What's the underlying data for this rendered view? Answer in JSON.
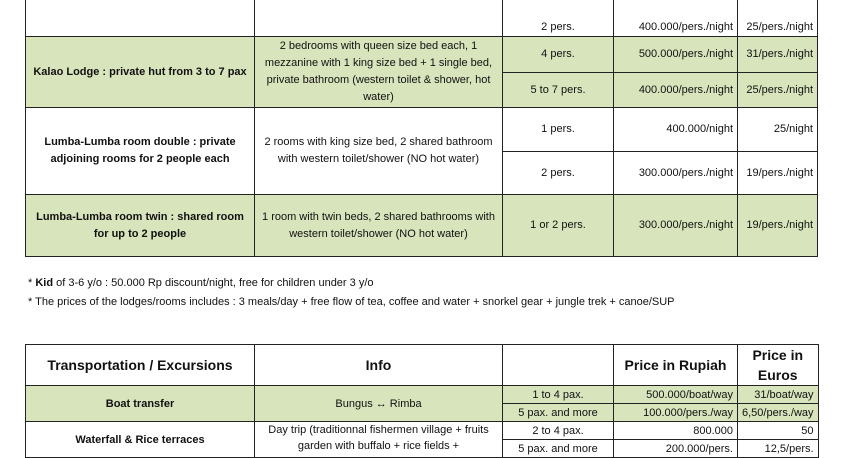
{
  "lodging": {
    "rows": [
      {
        "name": "",
        "info": "",
        "prices": [
          {
            "pax": "2 pers.",
            "rp": "400.000/pers./night",
            "eur": "25/pers./night"
          }
        ]
      },
      {
        "name": "Kalao Lodge : private hut from 3 to 7 pax",
        "info": "2 bedrooms with queen size bed each, 1 mezzanine with 1 king size bed + 1 single bed, private bathroom (western toilet & shower, hot water)",
        "prices": [
          {
            "pax": "4 pers.",
            "rp": "500.000/pers./night",
            "eur": "31/pers./night"
          },
          {
            "pax": "5 to 7 pers.",
            "rp": "400.000/pers./night",
            "eur": "25/pers./night"
          }
        ]
      },
      {
        "name": "Lumba-Lumba room double : private adjoining rooms for 2 people each",
        "info": "2 rooms with king size bed, 2 shared bathroom with western toilet/shower (NO hot water)",
        "prices": [
          {
            "pax": "1 pers.",
            "rp": "400.000/night",
            "eur": "25/night"
          },
          {
            "pax": "2 pers.",
            "rp": "300.000/pers./night",
            "eur": "19/pers./night"
          }
        ]
      },
      {
        "name": "Lumba-Lumba room twin : shared room for up to 2 people",
        "info": "1 room with twin beds, 2 shared bathrooms with western toilet/shower (NO hot water)",
        "prices": [
          {
            "pax": "1 or 2 pers.",
            "rp": "300.000/pers./night",
            "eur": "19/pers./night"
          }
        ]
      }
    ]
  },
  "notes": {
    "kid_bold": "Kid",
    "kid_text": " of 3-6 y/o : 50.000 Rp discount/night, free for children under 3 y/o",
    "kid_prefix": "* ",
    "includes": "* The prices of the lodges/rooms includes : 3 meals/day + free flow of tea, coffee and water + snorkel gear + jungle trek + canoe/SUP"
  },
  "transport": {
    "headers": [
      "Transportation / Excursions",
      "Info",
      "",
      "Price in Rupiah",
      "Price in Euros"
    ],
    "rows": [
      {
        "name": "Boat transfer",
        "info": "Bungus ↔ Rimba",
        "prices": [
          {
            "pax": "1 to 4 pax.",
            "rp": "500.000/boat/way",
            "eur": "31/boat/way"
          },
          {
            "pax": "5 pax. and more",
            "rp": "100.000/pers./way",
            "eur": "6,50/pers./way"
          }
        ]
      },
      {
        "name": "Waterfall & Rice terraces",
        "info": "Day trip (traditionnal fishermen village + fruits garden with buffalo + rice fields +",
        "prices": [
          {
            "pax": "2 to 4 pax.",
            "rp": "800.000",
            "eur": "50"
          },
          {
            "pax": "5 pax. and more",
            "rp": "200.000/pers.",
            "eur": "12,5/pers."
          }
        ]
      }
    ]
  },
  "colors": {
    "highlight": "#d8e4bc",
    "border": "#222222"
  }
}
